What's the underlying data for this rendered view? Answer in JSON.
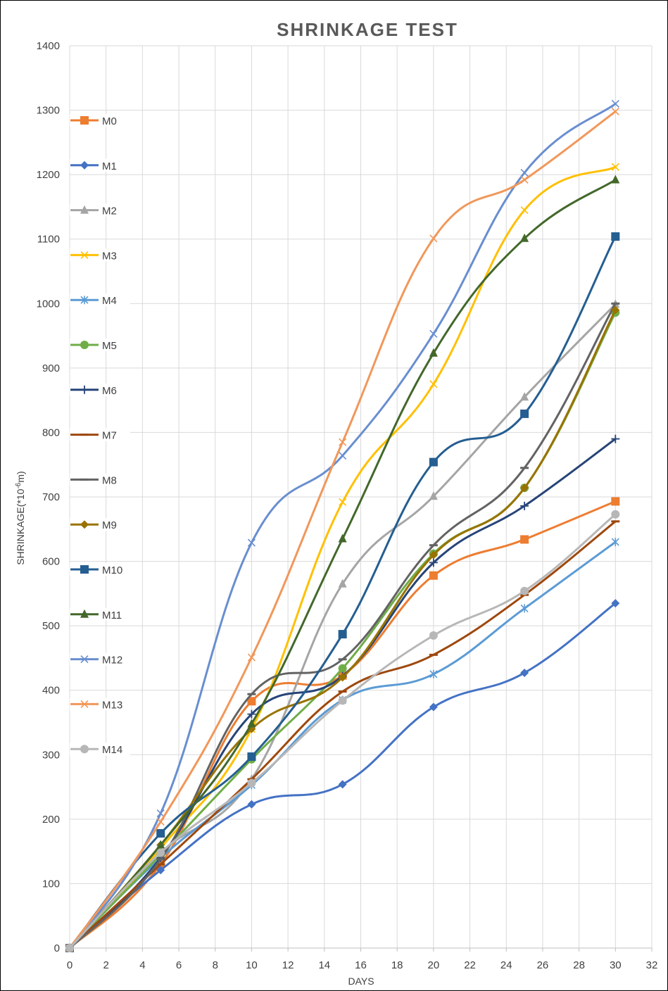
{
  "chart_data": {
    "type": "line",
    "title": "SHRINKAGE  TEST",
    "xlabel": "DAYS",
    "ylabel_prefix": "SHRINKAGE(*10",
    "ylabel_sup": "-6",
    "ylabel_suffix": "m)",
    "xlim": [
      0,
      32
    ],
    "ylim": [
      0,
      1400
    ],
    "xticks": [
      0,
      2,
      4,
      6,
      8,
      10,
      12,
      14,
      16,
      18,
      20,
      22,
      24,
      26,
      28,
      30,
      32
    ],
    "yticks": [
      0,
      100,
      200,
      300,
      400,
      500,
      600,
      700,
      800,
      900,
      1000,
      1100,
      1200,
      1300,
      1400
    ],
    "grid": true,
    "legend_position": "left",
    "x": [
      0,
      5,
      10,
      15,
      20,
      25,
      30
    ],
    "series": [
      {
        "name": "M0",
        "color": "#ED7D31",
        "marker": "square",
        "values": [
          0,
          130,
          383,
          423,
          578,
          634,
          693
        ]
      },
      {
        "name": "M1",
        "color": "#4472C4",
        "marker": "diamond",
        "values": [
          0,
          121,
          223,
          254,
          374,
          427,
          535
        ]
      },
      {
        "name": "M2",
        "color": "#A5A5A5",
        "marker": "triangle",
        "values": [
          0,
          148,
          262,
          565,
          701,
          855,
          999
        ]
      },
      {
        "name": "M3",
        "color": "#FFC000",
        "marker": "x",
        "values": [
          0,
          155,
          340,
          692,
          875,
          1145,
          1212
        ]
      },
      {
        "name": "M4",
        "color": "#5B9BD5",
        "marker": "star",
        "values": [
          0,
          140,
          253,
          385,
          425,
          527,
          630
        ]
      },
      {
        "name": "M5",
        "color": "#70AD47",
        "marker": "circle",
        "values": [
          0,
          145,
          293,
          434,
          612,
          714,
          986
        ]
      },
      {
        "name": "M6",
        "color": "#264478",
        "marker": "plus",
        "values": [
          0,
          140,
          363,
          422,
          598,
          686,
          790
        ]
      },
      {
        "name": "M7",
        "color": "#9E480E",
        "marker": "dash",
        "values": [
          0,
          130,
          262,
          398,
          455,
          548,
          662
        ]
      },
      {
        "name": "M8",
        "color": "#636363",
        "marker": "dash",
        "values": [
          0,
          138,
          394,
          448,
          625,
          745,
          1000
        ]
      },
      {
        "name": "M9",
        "color": "#997300",
        "marker": "diamond",
        "values": [
          0,
          160,
          340,
          420,
          610,
          714,
          990
        ]
      },
      {
        "name": "M10",
        "color": "#255E91",
        "marker": "square",
        "values": [
          0,
          178,
          297,
          487,
          754,
          829,
          1104
        ]
      },
      {
        "name": "M11",
        "color": "#43682B",
        "marker": "triangle",
        "values": [
          0,
          160,
          348,
          635,
          923,
          1101,
          1192
        ]
      },
      {
        "name": "M12",
        "color": "#698ED0",
        "marker": "x",
        "values": [
          0,
          209,
          629,
          764,
          953,
          1203,
          1310
        ]
      },
      {
        "name": "M13",
        "color": "#F1975A",
        "marker": "x",
        "values": [
          0,
          196,
          451,
          785,
          1101,
          1192,
          1298
        ]
      },
      {
        "name": "M14",
        "color": "#B7B7B7",
        "marker": "circle",
        "values": [
          0,
          148,
          256,
          384,
          485,
          554,
          673
        ]
      }
    ]
  }
}
